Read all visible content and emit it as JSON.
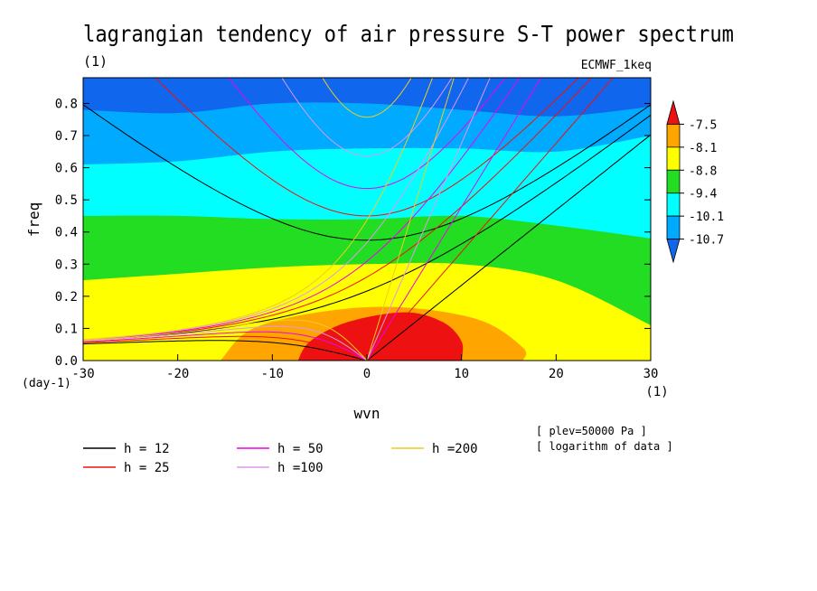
{
  "chart_data": {
    "type": "heatmap",
    "title": "lagrangian tendency of air pressure S-T power spectrum",
    "title_unit": "(1)",
    "source_label": "ECMWF_1keq",
    "xlabel": "wvn",
    "ylabel": "freq",
    "x_unit": "(1)",
    "y_unit": "(day-1)",
    "xlim": [
      -30,
      30
    ],
    "ylim": [
      0,
      0.88
    ],
    "x_ticks": [
      -30,
      -20,
      -10,
      0,
      10,
      20,
      30
    ],
    "y_ticks": [
      0.0,
      0.1,
      0.2,
      0.3,
      0.4,
      0.5,
      0.6,
      0.7,
      0.8
    ],
    "x_tick_labels": [
      "-30",
      "-20",
      "-10",
      "0",
      "10",
      "20",
      "30"
    ],
    "y_tick_labels": [
      "0.0",
      "0.1",
      "0.2",
      "0.3",
      "0.4",
      "0.5",
      "0.6",
      "0.7",
      "0.8"
    ],
    "colorbar": {
      "labels": [
        "-7.5",
        "-8.1",
        "-8.8",
        "-9.4",
        "-10.1",
        "-10.7"
      ],
      "colors": [
        "#ee1111",
        "#ffa500",
        "#ffff00",
        "#22dd22",
        "#00ffff",
        "#00aaff",
        "#1166ee"
      ]
    },
    "contour_regions": [
      {
        "level_band": "< -10.7",
        "color": "#1166ee",
        "description_x": [
          -30,
          30
        ],
        "upper_boundary": [
          [
            -30,
            0.78
          ],
          [
            -20,
            0.77
          ],
          [
            -10,
            0.8
          ],
          [
            0,
            0.8
          ],
          [
            10,
            0.78
          ],
          [
            20,
            0.76
          ],
          [
            30,
            0.79
          ]
        ]
      },
      {
        "level_band": "-10.7 to -10.1",
        "color": "#00aaff",
        "upper_boundary": [
          [
            -30,
            0.61
          ],
          [
            -20,
            0.62
          ],
          [
            -10,
            0.65
          ],
          [
            0,
            0.66
          ],
          [
            10,
            0.66
          ],
          [
            20,
            0.65
          ],
          [
            30,
            0.7
          ]
        ]
      },
      {
        "level_band": "-10.1 to -9.4",
        "color": "#00ffff",
        "upper_boundary": [
          [
            -30,
            0.45
          ],
          [
            -20,
            0.45
          ],
          [
            -10,
            0.44
          ],
          [
            0,
            0.44
          ],
          [
            10,
            0.45
          ],
          [
            20,
            0.42
          ],
          [
            30,
            0.38
          ]
        ]
      },
      {
        "level_band": "-9.4 to -8.8",
        "color": "#22dd22",
        "upper_boundary": [
          [
            -30,
            0.25
          ],
          [
            -20,
            0.27
          ],
          [
            -10,
            0.29
          ],
          [
            0,
            0.3
          ],
          [
            10,
            0.3
          ],
          [
            20,
            0.25
          ],
          [
            30,
            0.11
          ]
        ]
      },
      {
        "level_band": "-8.8 to -8.1",
        "color": "#ffff00"
      },
      {
        "level_band": "-8.1 to -7.5",
        "color": "#ffa500",
        "outline": [
          [
            -15.5,
            0.0
          ],
          [
            -12,
            0.1
          ],
          [
            -4,
            0.155
          ],
          [
            4,
            0.165
          ],
          [
            12,
            0.125
          ],
          [
            16.5,
            0.04
          ],
          [
            16.5,
            0.0
          ]
        ]
      },
      {
        "level_band": "> -7.5",
        "color": "#ee1111",
        "outline": [
          [
            -7.3,
            0.0
          ],
          [
            -6,
            0.06
          ],
          [
            -2,
            0.12
          ],
          [
            4,
            0.15
          ],
          [
            8,
            0.12
          ],
          [
            10,
            0.06
          ],
          [
            10,
            0.0
          ]
        ]
      }
    ],
    "dispersion_curves": [
      {
        "name": "h = 12",
        "color": "#000000",
        "h": 12
      },
      {
        "name": "h = 25",
        "color": "#ee1111",
        "h": 25
      },
      {
        "name": "h = 50",
        "color": "#ee00ee",
        "h": 50
      },
      {
        "name": "h =100",
        "color": "#dd99ee",
        "h": 100
      },
      {
        "name": "h =200",
        "color": "#eecc22",
        "h": 200
      }
    ],
    "notes": [
      "[ plev=50000 Pa ]",
      "[ logarithm of data ]"
    ]
  }
}
